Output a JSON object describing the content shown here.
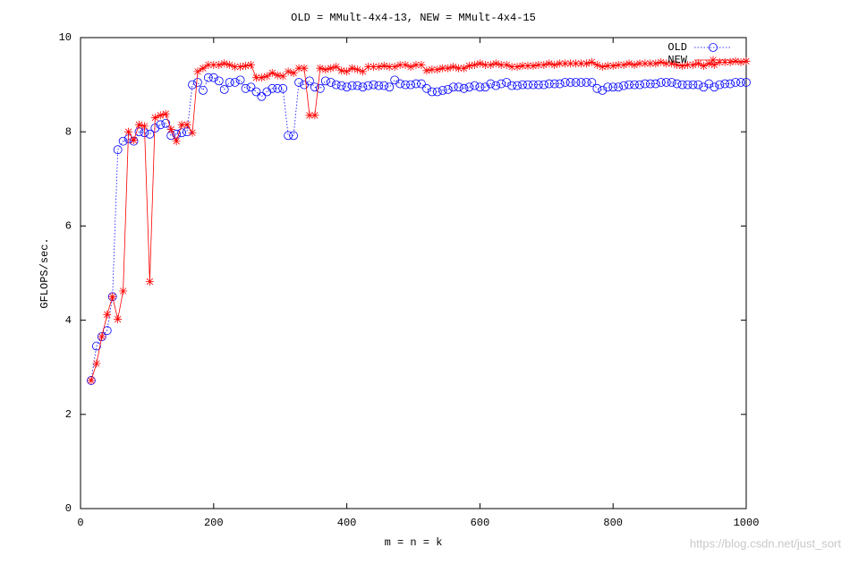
{
  "chart_data": {
    "type": "line",
    "title": "OLD = MMult-4x4-13, NEW = MMult-4x4-15",
    "xlabel": "m = n = k",
    "ylabel": "GFLOPS/sec.",
    "watermark": "https://blog.csdn.net/just_sort",
    "xlim": [
      0,
      1000
    ],
    "xticks": [
      0,
      200,
      400,
      600,
      800,
      1000
    ],
    "ylim": [
      0,
      10
    ],
    "yticks": [
      0,
      2,
      4,
      6,
      8,
      10
    ],
    "legend": "top-right",
    "x": [
      16,
      24,
      32,
      40,
      48,
      56,
      64,
      72,
      80,
      88,
      96,
      104,
      112,
      120,
      128,
      136,
      144,
      152,
      160,
      168,
      176,
      184,
      192,
      200,
      208,
      216,
      224,
      232,
      240,
      248,
      256,
      264,
      272,
      280,
      288,
      296,
      304,
      312,
      320,
      328,
      336,
      344,
      352,
      360,
      368,
      376,
      384,
      392,
      400,
      408,
      416,
      424,
      432,
      440,
      448,
      456,
      464,
      472,
      480,
      488,
      496,
      504,
      512,
      520,
      528,
      536,
      544,
      552,
      560,
      568,
      576,
      584,
      592,
      600,
      608,
      616,
      624,
      632,
      640,
      648,
      656,
      664,
      672,
      680,
      688,
      696,
      704,
      712,
      720,
      728,
      736,
      744,
      752,
      760,
      768,
      776,
      784,
      792,
      800,
      808,
      816,
      824,
      832,
      840,
      848,
      856,
      864,
      872,
      880,
      888,
      896,
      904,
      912,
      920,
      928,
      936,
      944,
      952,
      960,
      968,
      976,
      984,
      992,
      1000
    ],
    "series": [
      {
        "name": "OLD",
        "color": "#0000ff",
        "marker": "circle",
        "dash": "dotted",
        "values": [
          2.72,
          3.45,
          3.65,
          3.78,
          4.5,
          7.62,
          7.8,
          7.85,
          7.8,
          8.0,
          7.98,
          7.95,
          8.08,
          8.15,
          8.18,
          7.92,
          7.95,
          7.98,
          8.0,
          9.0,
          9.05,
          8.88,
          9.15,
          9.15,
          9.08,
          8.9,
          9.05,
          9.05,
          9.1,
          8.92,
          8.95,
          8.85,
          8.75,
          8.85,
          8.92,
          8.92,
          8.92,
          7.92,
          7.92,
          9.05,
          9.0,
          9.08,
          8.95,
          8.92,
          9.08,
          9.05,
          9.0,
          8.98,
          8.95,
          8.98,
          8.98,
          8.95,
          8.98,
          9.0,
          8.98,
          8.98,
          8.95,
          9.1,
          9.02,
          9.0,
          9.0,
          9.02,
          9.02,
          8.92,
          8.85,
          8.85,
          8.88,
          8.9,
          8.95,
          8.95,
          8.92,
          8.95,
          8.98,
          8.95,
          8.95,
          9.02,
          8.98,
          9.02,
          9.05,
          8.98,
          8.98,
          9.0,
          9.0,
          9.0,
          9.0,
          9.0,
          9.02,
          9.02,
          9.02,
          9.05,
          9.05,
          9.05,
          9.05,
          9.05,
          9.05,
          8.92,
          8.88,
          8.95,
          8.95,
          8.95,
          8.98,
          9.0,
          9.0,
          9.0,
          9.02,
          9.02,
          9.02,
          9.05,
          9.05,
          9.05,
          9.02,
          9.0,
          9.0,
          9.0,
          9.0,
          8.95,
          9.02,
          8.95,
          9.0,
          9.02,
          9.02,
          9.05,
          9.05,
          9.05
        ]
      },
      {
        "name": "NEW",
        "color": "#ff0000",
        "marker": "star",
        "dash": "solid",
        "values": [
          2.72,
          3.08,
          3.65,
          4.12,
          4.5,
          4.02,
          4.62,
          8.0,
          7.82,
          8.15,
          8.12,
          4.82,
          8.3,
          8.35,
          8.38,
          8.05,
          7.8,
          8.15,
          8.15,
          7.98,
          9.28,
          9.35,
          9.42,
          9.42,
          9.42,
          9.45,
          9.42,
          9.38,
          9.38,
          9.4,
          9.42,
          9.15,
          9.15,
          9.18,
          9.25,
          9.2,
          9.18,
          9.28,
          9.25,
          9.35,
          9.35,
          8.35,
          8.35,
          9.35,
          9.32,
          9.35,
          9.38,
          9.3,
          9.28,
          9.35,
          9.32,
          9.28,
          9.38,
          9.38,
          9.38,
          9.4,
          9.38,
          9.38,
          9.42,
          9.42,
          9.38,
          9.42,
          9.42,
          9.3,
          9.32,
          9.32,
          9.35,
          9.35,
          9.38,
          9.35,
          9.35,
          9.4,
          9.42,
          9.45,
          9.42,
          9.42,
          9.45,
          9.42,
          9.42,
          9.38,
          9.38,
          9.4,
          9.4,
          9.4,
          9.42,
          9.42,
          9.45,
          9.42,
          9.45,
          9.45,
          9.45,
          9.45,
          9.45,
          9.45,
          9.48,
          9.42,
          9.38,
          9.4,
          9.4,
          9.42,
          9.42,
          9.45,
          9.42,
          9.45,
          9.45,
          9.45,
          9.45,
          9.48,
          9.45,
          9.45,
          9.42,
          9.4,
          9.42,
          9.42,
          9.45,
          9.4,
          9.45,
          9.42,
          9.48,
          9.48,
          9.48,
          9.5,
          9.48,
          9.5
        ]
      }
    ]
  }
}
